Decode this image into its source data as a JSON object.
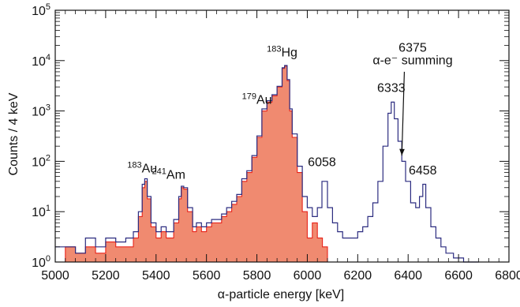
{
  "chart_data": {
    "type": "area",
    "xlabel": "α-particle energy [keV]",
    "ylabel": "Counts / 4 keV",
    "xlim": [
      5000,
      6800
    ],
    "ylim": [
      1,
      100000
    ],
    "yscale": "log",
    "x_ticks": [
      5000,
      5200,
      5400,
      5600,
      5800,
      6000,
      6200,
      6400,
      6600,
      6800
    ],
    "y_ticks": [
      1,
      10,
      100,
      1000,
      10000,
      100000
    ],
    "y_tick_labels": [
      {
        "base": "10",
        "exp": "0"
      },
      {
        "base": "10",
        "exp": "1"
      },
      {
        "base": "10",
        "exp": "2"
      },
      {
        "base": "10",
        "exp": "3"
      },
      {
        "base": "10",
        "exp": "4"
      },
      {
        "base": "10",
        "exp": "5"
      }
    ],
    "grid": false,
    "series": [
      {
        "color": "#f08a70",
        "edge_color": "#e8231a",
        "style": "filled-histogram",
        "points": [
          [
            5000,
            1
          ],
          [
            5040,
            2
          ],
          [
            5080,
            1.5
          ],
          [
            5120,
            2
          ],
          [
            5160,
            1.5
          ],
          [
            5200,
            2.5
          ],
          [
            5240,
            2
          ],
          [
            5280,
            2
          ],
          [
            5310,
            3
          ],
          [
            5330,
            8
          ],
          [
            5345,
            30
          ],
          [
            5355,
            40
          ],
          [
            5365,
            18
          ],
          [
            5380,
            5
          ],
          [
            5400,
            3
          ],
          [
            5420,
            4
          ],
          [
            5440,
            3
          ],
          [
            5470,
            6
          ],
          [
            5490,
            18
          ],
          [
            5500,
            30
          ],
          [
            5510,
            28
          ],
          [
            5525,
            10
          ],
          [
            5545,
            4
          ],
          [
            5560,
            5
          ],
          [
            5580,
            4
          ],
          [
            5600,
            5
          ],
          [
            5620,
            6
          ],
          [
            5640,
            6
          ],
          [
            5660,
            8
          ],
          [
            5680,
            10
          ],
          [
            5700,
            14
          ],
          [
            5720,
            20
          ],
          [
            5740,
            40
          ],
          [
            5760,
            60
          ],
          [
            5780,
            120
          ],
          [
            5800,
            300
          ],
          [
            5820,
            1000
          ],
          [
            5840,
            1500
          ],
          [
            5860,
            2000
          ],
          [
            5880,
            3000
          ],
          [
            5900,
            7000
          ],
          [
            5910,
            7800
          ],
          [
            5920,
            4000
          ],
          [
            5930,
            1000
          ],
          [
            5940,
            300
          ],
          [
            5960,
            60
          ],
          [
            5980,
            10
          ],
          [
            6000,
            3
          ],
          [
            6020,
            6
          ],
          [
            6040,
            3
          ],
          [
            6060,
            2
          ],
          [
            6080,
            1
          ]
        ]
      },
      {
        "color": "#2c2c80",
        "style": "step-line",
        "points": [
          [
            5000,
            2
          ],
          [
            5040,
            2
          ],
          [
            5080,
            1.5
          ],
          [
            5120,
            3
          ],
          [
            5160,
            2
          ],
          [
            5200,
            3
          ],
          [
            5240,
            2.5
          ],
          [
            5280,
            3
          ],
          [
            5310,
            4
          ],
          [
            5330,
            10
          ],
          [
            5345,
            35
          ],
          [
            5355,
            45
          ],
          [
            5365,
            20
          ],
          [
            5380,
            6
          ],
          [
            5400,
            4
          ],
          [
            5420,
            5
          ],
          [
            5440,
            4
          ],
          [
            5470,
            7
          ],
          [
            5490,
            20
          ],
          [
            5500,
            32
          ],
          [
            5510,
            30
          ],
          [
            5525,
            12
          ],
          [
            5545,
            5
          ],
          [
            5560,
            6
          ],
          [
            5580,
            5
          ],
          [
            5600,
            6
          ],
          [
            5620,
            7
          ],
          [
            5640,
            7
          ],
          [
            5660,
            9
          ],
          [
            5680,
            12
          ],
          [
            5700,
            16
          ],
          [
            5720,
            22
          ],
          [
            5740,
            45
          ],
          [
            5760,
            65
          ],
          [
            5780,
            130
          ],
          [
            5800,
            320
          ],
          [
            5820,
            1100
          ],
          [
            5840,
            1600
          ],
          [
            5860,
            2100
          ],
          [
            5880,
            3100
          ],
          [
            5900,
            7200
          ],
          [
            5910,
            8000
          ],
          [
            5920,
            4200
          ],
          [
            5930,
            1100
          ],
          [
            5940,
            350
          ],
          [
            5960,
            80
          ],
          [
            5980,
            20
          ],
          [
            6000,
            12
          ],
          [
            6020,
            8
          ],
          [
            6040,
            12
          ],
          [
            6058,
            40
          ],
          [
            6080,
            12
          ],
          [
            6100,
            6
          ],
          [
            6120,
            4
          ],
          [
            6140,
            3
          ],
          [
            6160,
            3
          ],
          [
            6180,
            3
          ],
          [
            6200,
            4
          ],
          [
            6220,
            5
          ],
          [
            6240,
            8
          ],
          [
            6260,
            15
          ],
          [
            6280,
            40
          ],
          [
            6300,
            200
          ],
          [
            6320,
            900
          ],
          [
            6333,
            1500
          ],
          [
            6345,
            700
          ],
          [
            6360,
            250
          ],
          [
            6375,
            100
          ],
          [
            6390,
            40
          ],
          [
            6410,
            15
          ],
          [
            6430,
            12
          ],
          [
            6445,
            20
          ],
          [
            6458,
            35
          ],
          [
            6470,
            12
          ],
          [
            6490,
            5
          ],
          [
            6510,
            3
          ],
          [
            6530,
            2
          ],
          [
            6550,
            1.5
          ],
          [
            6580,
            1.2
          ],
          [
            6620,
            1
          ],
          [
            6680,
            1
          ]
        ]
      }
    ],
    "annotations": [
      {
        "text": "Hg",
        "pre": "183",
        "x": 5900,
        "y": 12000
      },
      {
        "text": "Au",
        "pre": "179",
        "x": 5800,
        "y": 1400
      },
      {
        "text": "Au",
        "pre": "183",
        "x": 5345,
        "y": 60
      },
      {
        "text": "Am",
        "pre": "241",
        "x": 5450,
        "y": 45
      },
      {
        "text": "6058",
        "x": 6058,
        "y": 80
      },
      {
        "text": "6333",
        "x": 6333,
        "y": 2400
      },
      {
        "text": "6375",
        "x": 6418,
        "y": 15000
      },
      {
        "text": "α-e⁻ summing",
        "x": 6418,
        "y": 8500
      },
      {
        "text": "6458",
        "x": 6458,
        "y": 55
      }
    ]
  }
}
